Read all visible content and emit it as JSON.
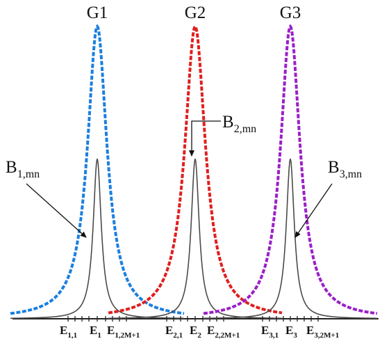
{
  "groups": [
    {
      "id": "g1",
      "label": "G1",
      "color": "#1a7fe0",
      "beam": {
        "base": "B",
        "sub": "1,mn"
      },
      "energy": [
        {
          "base": "E",
          "sub": "1,1"
        },
        {
          "base": "E",
          "sub": "1"
        },
        {
          "base": "E",
          "sub": "1,2M+1"
        }
      ]
    },
    {
      "id": "g2",
      "label": "G2",
      "color": "#e01f1f",
      "beam": {
        "base": "B",
        "sub": "2,mn"
      },
      "energy": [
        {
          "base": "E",
          "sub": "2,1"
        },
        {
          "base": "E",
          "sub": "2"
        },
        {
          "base": "E",
          "sub": "2,2M+1"
        }
      ]
    },
    {
      "id": "g3",
      "label": "G3",
      "color": "#9b1fc8",
      "beam": {
        "base": "B",
        "sub": "3,mn"
      },
      "energy": [
        {
          "base": "E",
          "sub": "3,1"
        },
        {
          "base": "E",
          "sub": "3"
        },
        {
          "base": "E",
          "sub": "3,2M+1"
        }
      ]
    }
  ],
  "colors": {
    "inner_curve": "#4a4a4a",
    "axis": "#222222",
    "arrow": "#111111"
  }
}
